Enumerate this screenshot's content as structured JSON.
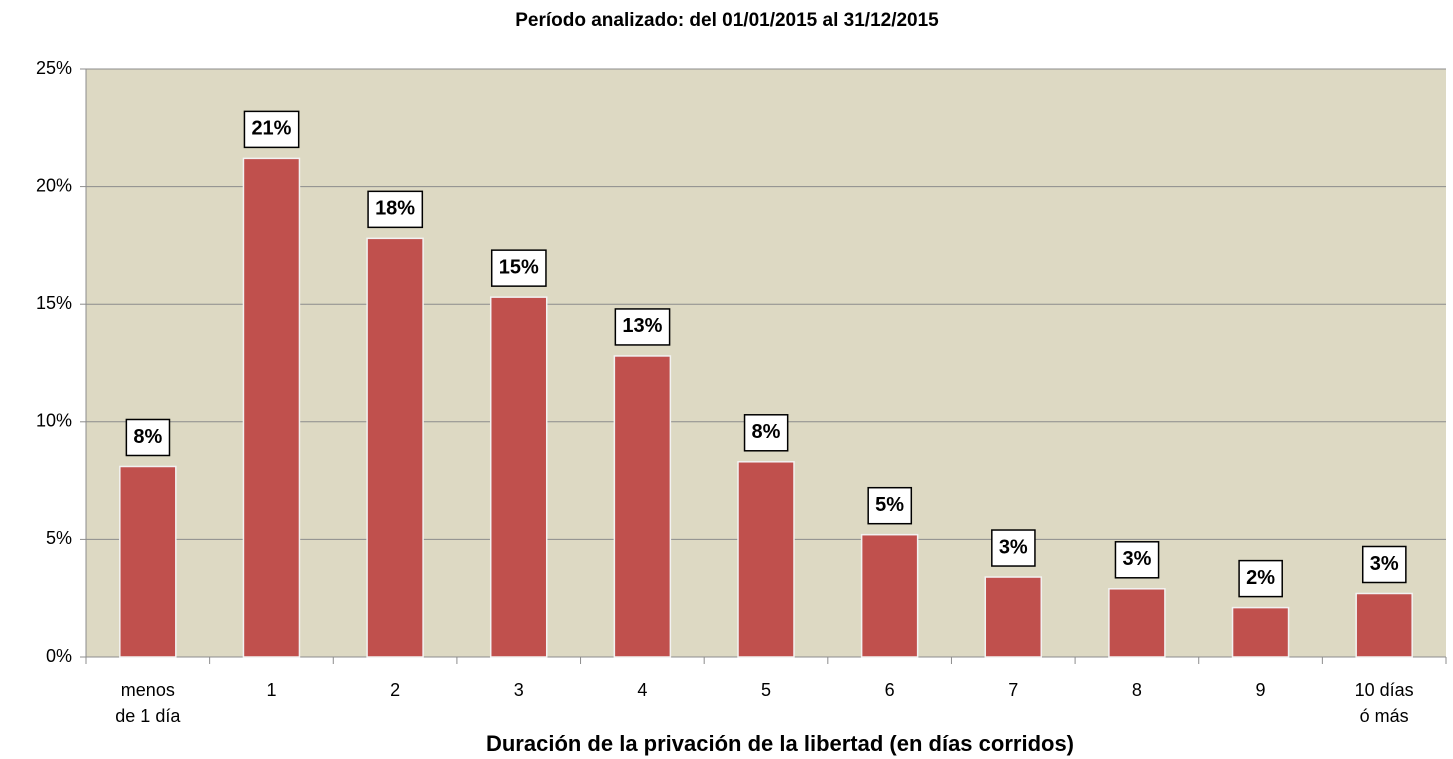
{
  "chart_data": {
    "type": "bar",
    "title": "Período analizado: del 01/01/2015 al 31/12/2015",
    "x_label": "Duración de la privación de la libertad (en días corridos)",
    "categories": [
      "menos\nde 1 día",
      "1",
      "2",
      "3",
      "4",
      "5",
      "6",
      "7",
      "8",
      "9",
      "10 días\nó más"
    ],
    "values": [
      8.1,
      21.2,
      17.8,
      15.3,
      12.8,
      8.3,
      5.2,
      3.4,
      2.9,
      2.1,
      2.7
    ],
    "value_labels": [
      "8%",
      "21%",
      "18%",
      "15%",
      "13%",
      "8%",
      "5%",
      "3%",
      "3%",
      "2%",
      "3%"
    ],
    "color": "#c0504d",
    "ylim": [
      0,
      25
    ],
    "yticks": [
      {
        "value": 0,
        "label": "0%"
      },
      {
        "value": 5,
        "label": "5%"
      },
      {
        "value": 10,
        "label": "10%"
      },
      {
        "value": 15,
        "label": "15%"
      },
      {
        "value": 20,
        "label": "20%"
      },
      {
        "value": 25,
        "label": "25%"
      }
    ],
    "grid": true
  }
}
